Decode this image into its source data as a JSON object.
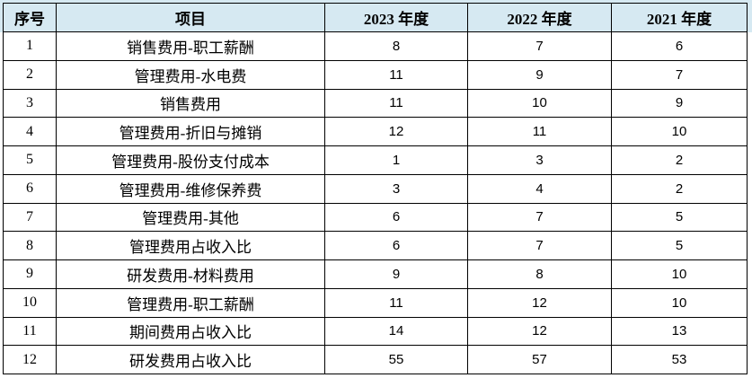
{
  "colors": {
    "header_bg": "#d6e9f2",
    "border": "#000000",
    "text": "#000000",
    "body_bg": "#ffffff"
  },
  "table": {
    "columns": [
      {
        "label": "序号"
      },
      {
        "label": "项目"
      },
      {
        "label": "2023 年度"
      },
      {
        "label": "2022 年度"
      },
      {
        "label": "2021 年度"
      }
    ],
    "rows": [
      [
        "1",
        "销售费用-职工薪酬",
        "8",
        "7",
        "6"
      ],
      [
        "2",
        "管理费用-水电费",
        "11",
        "9",
        "7"
      ],
      [
        "3",
        "销售费用",
        "11",
        "10",
        "9"
      ],
      [
        "4",
        "管理费用-折旧与摊销",
        "12",
        "11",
        "10"
      ],
      [
        "5",
        "管理费用-股份支付成本",
        "1",
        "3",
        "2"
      ],
      [
        "6",
        "管理费用-维修保养费",
        "3",
        "4",
        "2"
      ],
      [
        "7",
        "管理费用-其他",
        "6",
        "7",
        "5"
      ],
      [
        "8",
        "管理费用占收入比",
        "6",
        "7",
        "5"
      ],
      [
        "9",
        "研发费用-材料费用",
        "9",
        "8",
        "10"
      ],
      [
        "10",
        "管理费用-职工薪酬",
        "11",
        "12",
        "10"
      ],
      [
        "11",
        "期间费用占收入比",
        "14",
        "12",
        "13"
      ],
      [
        "12",
        "研发费用占收入比",
        "55",
        "57",
        "53"
      ]
    ]
  }
}
